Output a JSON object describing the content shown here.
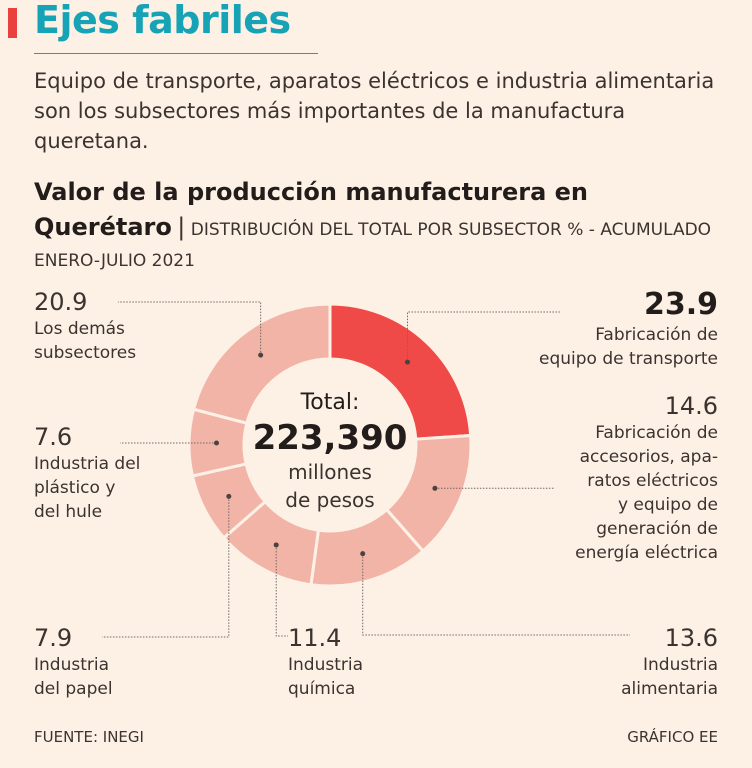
{
  "header": {
    "title": "Ejes fabriles",
    "intro": "Equipo de transporte, aparatos eléctricos e industria alimentaria son los subsectores más importantes de la manufactura queretana."
  },
  "chart_data": {
    "type": "pie",
    "title": "Valor de la producción manufacturera en",
    "title_place": "Querétaro",
    "title_sep": "|",
    "subtitle": "DISTRIBUCIÓN DEL TOTAL POR SUBSECTOR % - ACUMULADO ENERO-JULIO 2021",
    "unit": "%",
    "center": {
      "label": "Total:",
      "value": "223,390",
      "unit_line1": "millones",
      "unit_line2": "de pesos"
    },
    "slices": [
      {
        "name": "Fabricación de equipo de transporte",
        "value": 23.9,
        "value_label": "23.9",
        "color": "#ef4a48",
        "label_lines": [
          "Fabricación de",
          "equipo de transporte"
        ]
      },
      {
        "name": "Fabricación de accesorios, aparatos eléctricos y equipo de generación de energía eléctrica",
        "value": 14.6,
        "value_label": "14.6",
        "color": "#f3b4a8",
        "label_lines": [
          "Fabricación de",
          "accesorios, apa-",
          "ratos eléctricos",
          "y equipo de",
          "generación de",
          "energía eléctrica"
        ]
      },
      {
        "name": "Industria alimentaria",
        "value": 13.6,
        "value_label": "13.6",
        "color": "#f3b4a8",
        "label_lines": [
          "Industria",
          "alimentaria"
        ]
      },
      {
        "name": "Industria química",
        "value": 11.4,
        "value_label": "11.4",
        "color": "#f3b4a8",
        "label_lines": [
          "Industria",
          "química"
        ]
      },
      {
        "name": "Industria del papel",
        "value": 7.9,
        "value_label": "7.9",
        "color": "#f3b4a8",
        "label_lines": [
          "Industria",
          "del papel"
        ]
      },
      {
        "name": "Industria del plástico y del hule",
        "value": 7.6,
        "value_label": "7.6",
        "color": "#f3b4a8",
        "label_lines": [
          "Industria del",
          "plástico y",
          "del hule"
        ]
      },
      {
        "name": "Los demás subsectores",
        "value": 20.9,
        "value_label": "20.9",
        "color": "#f3b4a8",
        "label_lines": [
          "Los demás",
          "subsectores"
        ]
      }
    ]
  },
  "footer": {
    "source": "FUENTE: INEGI",
    "credit": "GRÁFICO EE"
  },
  "colors": {
    "title": "#17a3b6",
    "accent": "#e8413e",
    "highlight_slice": "#ef4a48",
    "slice": "#f3b4a8",
    "background": "#fdf1e5"
  }
}
